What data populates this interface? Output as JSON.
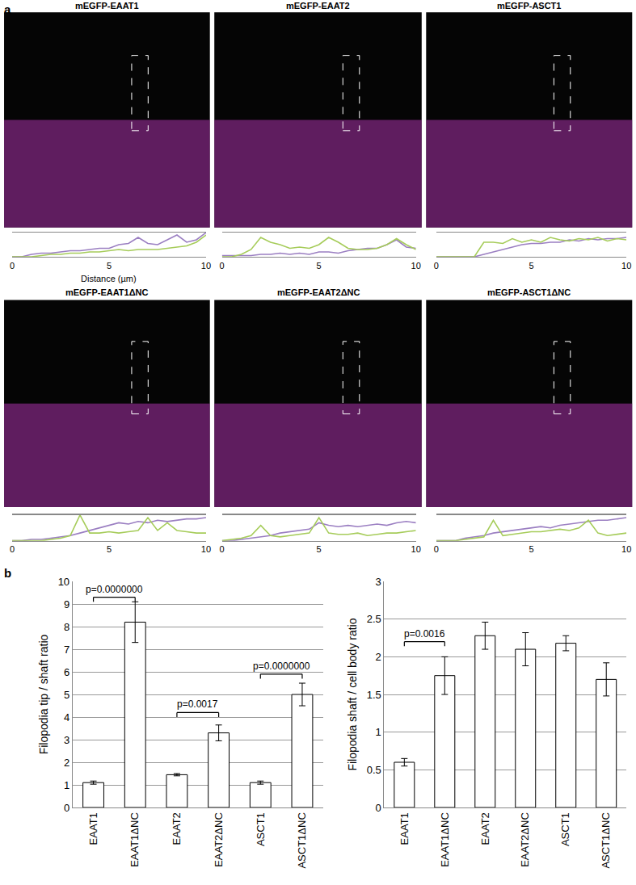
{
  "chart_data": [
    {
      "type": "line",
      "title": "mEGFP-EAAT1",
      "xlabel": "Distance (µm)",
      "annotations": [
        {
          "text": "a"
        }
      ],
      "x": [
        0,
        0.5,
        1,
        1.5,
        2,
        2.5,
        3,
        3.5,
        4,
        4.5,
        5,
        5.5,
        6,
        6.5,
        7,
        7.5,
        8,
        8.5,
        9,
        9.5,
        10
      ],
      "series": [
        {
          "color": "#9b7fc2",
          "values": [
            0,
            0,
            0.1,
            0.15,
            0.15,
            0.2,
            0.25,
            0.25,
            0.3,
            0.35,
            0.35,
            0.5,
            0.55,
            0.8,
            0.55,
            0.5,
            0.7,
            0.9,
            0.6,
            0.7,
            1.0
          ]
        },
        {
          "color": "#a6cc5a",
          "values": [
            0,
            0,
            0,
            0.05,
            0.1,
            0.1,
            0.15,
            0.15,
            0.2,
            0.2,
            0.25,
            0.3,
            0.25,
            0.3,
            0.3,
            0.3,
            0.35,
            0.4,
            0.45,
            0.6,
            0.9
          ]
        }
      ],
      "xlim": [
        0,
        10
      ],
      "xticks": [
        0,
        5,
        10
      ],
      "ylim": [
        0,
        1
      ],
      "tick_labels": "x"
    },
    {
      "type": "line",
      "title": "mEGFP-EAAT2",
      "x": [
        0,
        0.5,
        1,
        1.5,
        2,
        2.5,
        3,
        3.5,
        4,
        4.5,
        5,
        5.5,
        6,
        6.5,
        7,
        7.5,
        8,
        8.5,
        9,
        9.5,
        10
      ],
      "series": [
        {
          "color": "#9b7fc2",
          "values": [
            0.05,
            0.05,
            0.05,
            0.05,
            0.1,
            0.1,
            0.15,
            0.1,
            0.15,
            0.1,
            0.2,
            0.2,
            0.15,
            0.25,
            0.3,
            0.35,
            0.35,
            0.5,
            0.7,
            0.4,
            0.35
          ]
        },
        {
          "color": "#a6cc5a",
          "values": [
            0,
            0,
            0.1,
            0.3,
            0.8,
            0.6,
            0.5,
            0.35,
            0.4,
            0.35,
            0.5,
            0.8,
            0.6,
            0.35,
            0.3,
            0.3,
            0.35,
            0.5,
            0.75,
            0.5,
            0.3
          ]
        }
      ],
      "xlim": [
        0,
        10
      ],
      "xticks": [
        0,
        5,
        10
      ],
      "ylim": [
        0,
        1
      ],
      "tick_labels": "x"
    },
    {
      "type": "line",
      "title": "mEGFP-ASCT1",
      "x": [
        0,
        0.5,
        1,
        1.5,
        2,
        2.5,
        3,
        3.5,
        4,
        4.5,
        5,
        5.5,
        6,
        6.5,
        7,
        7.5,
        8,
        8.5,
        9,
        9.5,
        10
      ],
      "series": [
        {
          "color": "#9b7fc2",
          "values": [
            0,
            0,
            0,
            0,
            0,
            0.1,
            0.2,
            0.3,
            0.4,
            0.5,
            0.55,
            0.55,
            0.6,
            0.6,
            0.7,
            0.65,
            0.75,
            0.7,
            0.75,
            0.75,
            0.8
          ]
        },
        {
          "color": "#a6cc5a",
          "values": [
            0,
            0,
            0,
            0,
            0,
            0.6,
            0.6,
            0.55,
            0.75,
            0.6,
            0.7,
            0.6,
            0.8,
            0.7,
            0.65,
            0.75,
            0.7,
            0.8,
            0.65,
            0.75,
            0.7
          ]
        }
      ],
      "xlim": [
        0,
        10
      ],
      "xticks": [
        0,
        5,
        10
      ],
      "ylim": [
        0,
        1
      ],
      "tick_labels": "x"
    },
    {
      "type": "line",
      "title": "mEGFP-EAAT1ΔNC",
      "x": [
        0,
        0.5,
        1,
        1.5,
        2,
        2.5,
        3,
        3.5,
        4,
        4.5,
        5,
        5.5,
        6,
        6.5,
        7,
        7.5,
        8,
        8.5,
        9,
        9.5,
        10
      ],
      "series": [
        {
          "color": "#9b7fc2",
          "values": [
            0,
            0,
            0.05,
            0.05,
            0.1,
            0.15,
            0.2,
            0.3,
            0.4,
            0.5,
            0.6,
            0.7,
            0.65,
            0.75,
            0.7,
            0.8,
            0.75,
            0.8,
            0.85,
            0.85,
            0.9
          ]
        },
        {
          "color": "#a6cc5a",
          "values": [
            0,
            0,
            0,
            0,
            0.05,
            0.1,
            0.2,
            1.0,
            0.3,
            0.3,
            0.35,
            0.3,
            0.35,
            0.4,
            0.9,
            0.4,
            0.7,
            0.4,
            0.35,
            0.3,
            0.3
          ]
        }
      ],
      "xlim": [
        0,
        10
      ],
      "xticks": [
        0,
        5,
        10
      ],
      "ylim": [
        0,
        1
      ],
      "tick_labels": "x"
    },
    {
      "type": "line",
      "title": "mEGFP-EAAT2ΔNC",
      "x": [
        0,
        0.5,
        1,
        1.5,
        2,
        2.5,
        3,
        3.5,
        4,
        4.5,
        5,
        5.5,
        6,
        6.5,
        7,
        7.5,
        8,
        8.5,
        9,
        9.5,
        10
      ],
      "series": [
        {
          "color": "#9b7fc2",
          "values": [
            0,
            0,
            0.05,
            0.1,
            0.15,
            0.2,
            0.3,
            0.35,
            0.4,
            0.45,
            0.7,
            0.6,
            0.55,
            0.6,
            0.55,
            0.6,
            0.65,
            0.6,
            0.7,
            0.75,
            0.7
          ]
        },
        {
          "color": "#a6cc5a",
          "values": [
            0,
            0.05,
            0.1,
            0.2,
            0.6,
            0.2,
            0.15,
            0.2,
            0.25,
            0.3,
            0.9,
            0.3,
            0.25,
            0.25,
            0.3,
            0.2,
            0.25,
            0.3,
            0.3,
            0.35,
            0.4
          ]
        }
      ],
      "xlim": [
        0,
        10
      ],
      "xticks": [
        0,
        5,
        10
      ],
      "ylim": [
        0,
        1
      ],
      "tick_labels": "x"
    },
    {
      "type": "line",
      "title": "mEGFP-ASCT1ΔNC",
      "x": [
        0,
        0.5,
        1,
        1.5,
        2,
        2.5,
        3,
        3.5,
        4,
        4.5,
        5,
        5.5,
        6,
        6.5,
        7,
        7.5,
        8,
        8.5,
        9,
        9.5,
        10
      ],
      "series": [
        {
          "color": "#9b7fc2",
          "values": [
            0,
            0,
            0,
            0.1,
            0.15,
            0.2,
            0.3,
            0.35,
            0.4,
            0.45,
            0.5,
            0.55,
            0.5,
            0.6,
            0.65,
            0.7,
            0.75,
            0.8,
            0.8,
            0.85,
            0.9
          ]
        },
        {
          "color": "#a6cc5a",
          "values": [
            0,
            0,
            0,
            0.05,
            0.1,
            0.15,
            0.8,
            0.2,
            0.25,
            0.3,
            0.35,
            0.35,
            0.4,
            0.45,
            0.4,
            0.5,
            0.8,
            0.3,
            0.2,
            0.25,
            0.3
          ]
        }
      ],
      "xlim": [
        0,
        10
      ],
      "xticks": [
        0,
        5,
        10
      ],
      "ylim": [
        0,
        1
      ],
      "tick_labels": "x"
    },
    {
      "type": "bar",
      "ylabel": "Filopodia tip / shaft ratio",
      "categories": [
        "EAAT1",
        "EAAT1ΔNC",
        "EAAT2",
        "EAAT2ΔNC",
        "ASCT1",
        "ASCT1ΔNC"
      ],
      "values": [
        1.1,
        8.2,
        1.45,
        3.3,
        1.1,
        5.0
      ],
      "errors": [
        0.07,
        0.9,
        0.05,
        0.35,
        0.07,
        0.5
      ],
      "color": "#ffffff",
      "ylim": [
        0,
        10
      ],
      "yticks": [
        0,
        1,
        2,
        3,
        4,
        5,
        6,
        7,
        8,
        9,
        10
      ],
      "grid": true,
      "annotations": [
        {
          "text": "b"
        },
        {
          "text": "p=0.0000000",
          "from": "EAAT1",
          "to": "EAAT1ΔNC",
          "y": 9.3
        },
        {
          "text": "p=0.0017",
          "from": "EAAT2",
          "to": "EAAT2ΔNC",
          "y": 4.2
        },
        {
          "text": "p=0.0000000",
          "from": "ASCT1",
          "to": "ASCT1ΔNC",
          "y": 5.9
        }
      ]
    },
    {
      "type": "bar",
      "ylabel": "Filopodia shaft / cell body ratio",
      "categories": [
        "EAAT1",
        "EAAT1ΔNC",
        "EAAT2",
        "EAAT2ΔNC",
        "ASCT1",
        "ASCT1ΔNC"
      ],
      "values": [
        0.6,
        1.75,
        2.28,
        2.1,
        2.18,
        1.7
      ],
      "errors": [
        0.05,
        0.25,
        0.18,
        0.22,
        0.1,
        0.22
      ],
      "color": "#ffffff",
      "ylim": [
        0,
        3
      ],
      "yticks": [
        0,
        0.5,
        1,
        1.5,
        2,
        2.5,
        3
      ],
      "grid": true,
      "annotations": [
        {
          "text": "p=0.0016",
          "from": "EAAT1",
          "to": "EAAT1ΔNC",
          "y": 2.2
        }
      ]
    }
  ]
}
